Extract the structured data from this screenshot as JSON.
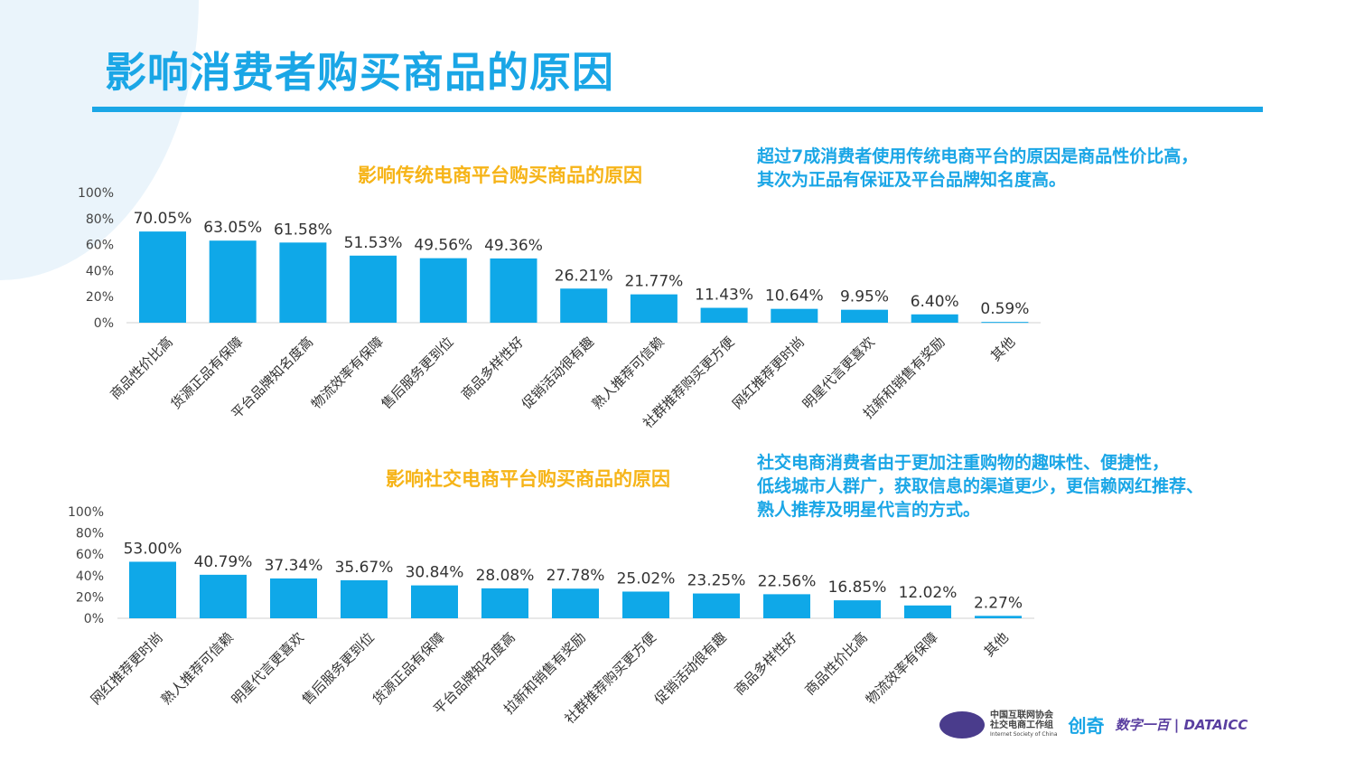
{
  "page": {
    "title": "影响消费者购买商品的原因"
  },
  "notes": {
    "traditional": [
      "超过7成消费者使用传统电商平台的原因是商品性价比高，",
      "其次为正品有保证及平台品牌知名度高。"
    ],
    "social": [
      "社交电商消费者由于更加注重购物的趣味性、便捷性，",
      "低线城市人群广，获取信息的渠道更少，更信赖网红推荐、",
      "熟人推荐及明星代言的方式。"
    ]
  },
  "logos": {
    "isc_line1": "中国互联网协会",
    "isc_line2": "社交电商工作组",
    "isc_en": "Internet Society of China",
    "chuangqi": "创奇",
    "datatitle": "数字一百 | DATAICC"
  },
  "colors": {
    "bar": "#0fa8e8",
    "title": "#1aa6e6",
    "chart_title": "#f6b418"
  },
  "chart_data": [
    {
      "type": "bar",
      "title": "影响传统电商平台购买商品的原因",
      "ylim": [
        0,
        100
      ],
      "yticks": [
        "0%",
        "20%",
        "40%",
        "60%",
        "80%",
        "100%"
      ],
      "categories": [
        "商品性价比高",
        "货源正品有保障",
        "平台品牌知名度高",
        "物流效率有保障",
        "售后服务更到位",
        "商品多样性好",
        "促销活动很有趣",
        "熟人推荐可信赖",
        "社群推荐购买更方便",
        "网红推荐更时尚",
        "明星代言更喜欢",
        "拉新和销售有奖励",
        "其他"
      ],
      "values": [
        70.05,
        63.05,
        61.58,
        51.53,
        49.56,
        49.36,
        26.21,
        21.77,
        11.43,
        10.64,
        9.95,
        6.4,
        0.59
      ],
      "labels": [
        "70.05%",
        "63.05%",
        "61.58%",
        "51.53%",
        "49.56%",
        "49.36%",
        "26.21%",
        "21.77%",
        "11.43%",
        "10.64%",
        "9.95%",
        "6.40%",
        "0.59%"
      ]
    },
    {
      "type": "bar",
      "title": "影响社交电商平台购买商品的原因",
      "ylim": [
        0,
        100
      ],
      "yticks": [
        "0%",
        "20%",
        "40%",
        "60%",
        "80%",
        "100%"
      ],
      "categories": [
        "网红推荐更时尚",
        "熟人推荐可信赖",
        "明星代言更喜欢",
        "售后服务更到位",
        "货源正品有保障",
        "平台品牌知名度高",
        "拉新和销售有奖励",
        "社群推荐购买更方便",
        "促销活动很有趣",
        "商品多样性好",
        "商品性价比高",
        "物流效率有保障",
        "其他"
      ],
      "values": [
        53.0,
        40.79,
        37.34,
        35.67,
        30.84,
        28.08,
        27.78,
        25.02,
        23.25,
        22.56,
        16.85,
        12.02,
        2.27
      ],
      "labels": [
        "53.00%",
        "40.79%",
        "37.34%",
        "35.67%",
        "30.84%",
        "28.08%",
        "27.78%",
        "25.02%",
        "23.25%",
        "22.56%",
        "16.85%",
        "12.02%",
        "2.27%"
      ]
    }
  ]
}
